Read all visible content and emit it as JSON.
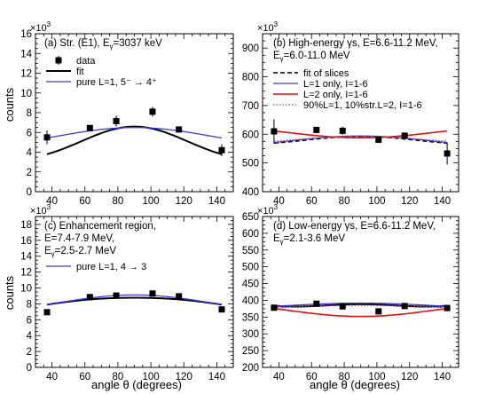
{
  "figure": {
    "ylabel": "counts",
    "xlabel": "angle θ (degrees)",
    "exponent": "×10",
    "exponent_power": "3"
  },
  "colors": {
    "data": "#000000",
    "fit": "#000000",
    "blue": "#3b3be0",
    "red": "#e01010",
    "dotted": "#c04070"
  },
  "chart_data": [
    {
      "type": "scatter",
      "panel": "a",
      "title_lines": [
        "(a) Str. (E1), E",
        "=3037 keV"
      ],
      "title_sub": "γ",
      "xlim": [
        30,
        150
      ],
      "ylim": [
        0,
        16
      ],
      "xticks": [
        40,
        60,
        80,
        100,
        120,
        140
      ],
      "yticks": [
        0,
        2,
        4,
        6,
        8,
        10,
        12,
        14,
        16
      ],
      "points": [
        {
          "x": 37,
          "y": 5.5,
          "err": 0.7
        },
        {
          "x": 63,
          "y": 6.45,
          "err": 0.3
        },
        {
          "x": 79,
          "y": 7.15,
          "err": 0.55
        },
        {
          "x": 101,
          "y": 8.1,
          "err": 0.5
        },
        {
          "x": 117,
          "y": 6.3,
          "err": 0.25
        },
        {
          "x": 143,
          "y": 4.2,
          "err": 0.6
        }
      ],
      "curves": [
        {
          "name": "fit",
          "style": "fit",
          "a0": 5.1,
          "a2": -2.57,
          "a4": 0.56
        },
        {
          "name": "pure L=1, 5⁻ → 4⁺",
          "style": "blue",
          "a0": 5.95,
          "a2": -1.1,
          "a4": 0
        }
      ],
      "legend": [
        {
          "label": "data",
          "style": "data"
        },
        {
          "label": "fit",
          "style": "fit"
        },
        {
          "label": "pure L=1, 5⁻ → 4⁺",
          "style": "blue"
        }
      ]
    },
    {
      "type": "scatter",
      "panel": "b",
      "title_lines": [
        "(b) High-energy γs, E=6.6-11.2 MeV,",
        "E",
        "=6.0-11.0 MeV"
      ],
      "title_sub": "γ",
      "xlim": [
        30,
        150
      ],
      "ylim": [
        400,
        950
      ],
      "xticks": [
        40,
        60,
        80,
        100,
        120,
        140
      ],
      "yticks": [
        400,
        500,
        600,
        700,
        800,
        900
      ],
      "points": [
        {
          "x": 37,
          "y": 610,
          "err": 42
        },
        {
          "x": 63,
          "y": 615,
          "err": 8
        },
        {
          "x": 79,
          "y": 612,
          "err": 14
        },
        {
          "x": 101,
          "y": 581,
          "err": 12
        },
        {
          "x": 117,
          "y": 595,
          "err": 8
        },
        {
          "x": 143,
          "y": 533,
          "err": 38
        }
      ],
      "curves": [
        {
          "name": "fit of slices",
          "style": "dashed",
          "a0": 580,
          "a2": -22,
          "a4": 4
        },
        {
          "name": "L=1 only, I=1-6",
          "style": "blue",
          "a0": 582,
          "a2": -24,
          "a4": 0
        },
        {
          "name": "L=2 only, I=1-6",
          "style": "red",
          "a0": 600,
          "a2": 25,
          "a4": 0
        },
        {
          "name": "90%L=1, 10%str.L=2, I=1-6",
          "style": "dotted",
          "a0": 583,
          "a2": -16,
          "a4": 0
        }
      ],
      "legend": [
        {
          "label": "fit of slices",
          "style": "dashed"
        },
        {
          "label": "L=1 only, I=1-6",
          "style": "blue"
        },
        {
          "label": "L=2 only, I=1-6",
          "style": "red"
        },
        {
          "label": "90%L=1, 10%str.L=2, I=1-6",
          "style": "dotted"
        }
      ]
    },
    {
      "type": "scatter",
      "panel": "c",
      "title_lines": [
        "(c) Enhancement region,",
        "E=7.4-7.9 MeV,",
        "E",
        "=2.5-2.7 MeV"
      ],
      "title_sub": "γ",
      "xlim": [
        30,
        150
      ],
      "ylim": [
        0,
        19
      ],
      "xticks": [
        40,
        60,
        80,
        100,
        120,
        140
      ],
      "yticks": [
        0,
        2,
        4,
        6,
        8,
        10,
        12,
        14,
        16,
        18
      ],
      "points": [
        {
          "x": 37,
          "y": 6.95,
          "err": 0.15
        },
        {
          "x": 63,
          "y": 8.85,
          "err": 0.2
        },
        {
          "x": 79,
          "y": 9.05,
          "err": 0.2
        },
        {
          "x": 101,
          "y": 9.3,
          "err": 0.25
        },
        {
          "x": 117,
          "y": 8.95,
          "err": 0.2
        },
        {
          "x": 143,
          "y": 7.3,
          "err": 0.25
        }
      ],
      "curves": [
        {
          "name": "fit",
          "style": "fit",
          "a0": 8.33,
          "a2": -1.0,
          "a4": -0.16
        },
        {
          "name": "pure L=1, 4 → 3",
          "style": "blue",
          "a0": 8.5,
          "a2": -1.25,
          "a4": 0
        }
      ],
      "legend": [
        {
          "label": "pure L=1, 4 → 3",
          "style": "blue"
        }
      ]
    },
    {
      "type": "scatter",
      "panel": "d",
      "title_lines": [
        "(d) Low-energy γs, E=6.6-11.2 MeV,",
        "E",
        "=2.1-3.6 MeV"
      ],
      "title_sub": "γ",
      "xlim": [
        30,
        150
      ],
      "ylim": [
        200,
        650
      ],
      "xticks": [
        40,
        60,
        80,
        100,
        120,
        140
      ],
      "yticks": [
        200,
        250,
        300,
        350,
        400,
        450,
        500,
        550,
        600,
        650
      ],
      "points": [
        {
          "x": 37,
          "y": 378,
          "err": 5
        },
        {
          "x": 63,
          "y": 390,
          "err": 5
        },
        {
          "x": 79,
          "y": 382,
          "err": 6
        },
        {
          "x": 101,
          "y": 367,
          "err": 6
        },
        {
          "x": 117,
          "y": 383,
          "err": 5
        },
        {
          "x": 143,
          "y": 377,
          "err": 6
        }
      ],
      "curves": [
        {
          "name": "fit",
          "style": "fit",
          "a0": 385.5,
          "a2": 1.5,
          "a4": 10
        },
        {
          "name": "dashed",
          "style": "dashed",
          "a0": 383.7,
          "a2": -5.9,
          "a4": 3.3
        },
        {
          "name": "blue",
          "style": "blue",
          "a0": 386.7,
          "a2": -10,
          "a4": 0
        },
        {
          "name": "red",
          "style": "red",
          "a0": 364.4,
          "a2": 25,
          "a4": 0
        },
        {
          "name": "dotted",
          "style": "dotted",
          "a0": 382,
          "a2": -6,
          "a4": 0
        }
      ],
      "legend": []
    }
  ]
}
